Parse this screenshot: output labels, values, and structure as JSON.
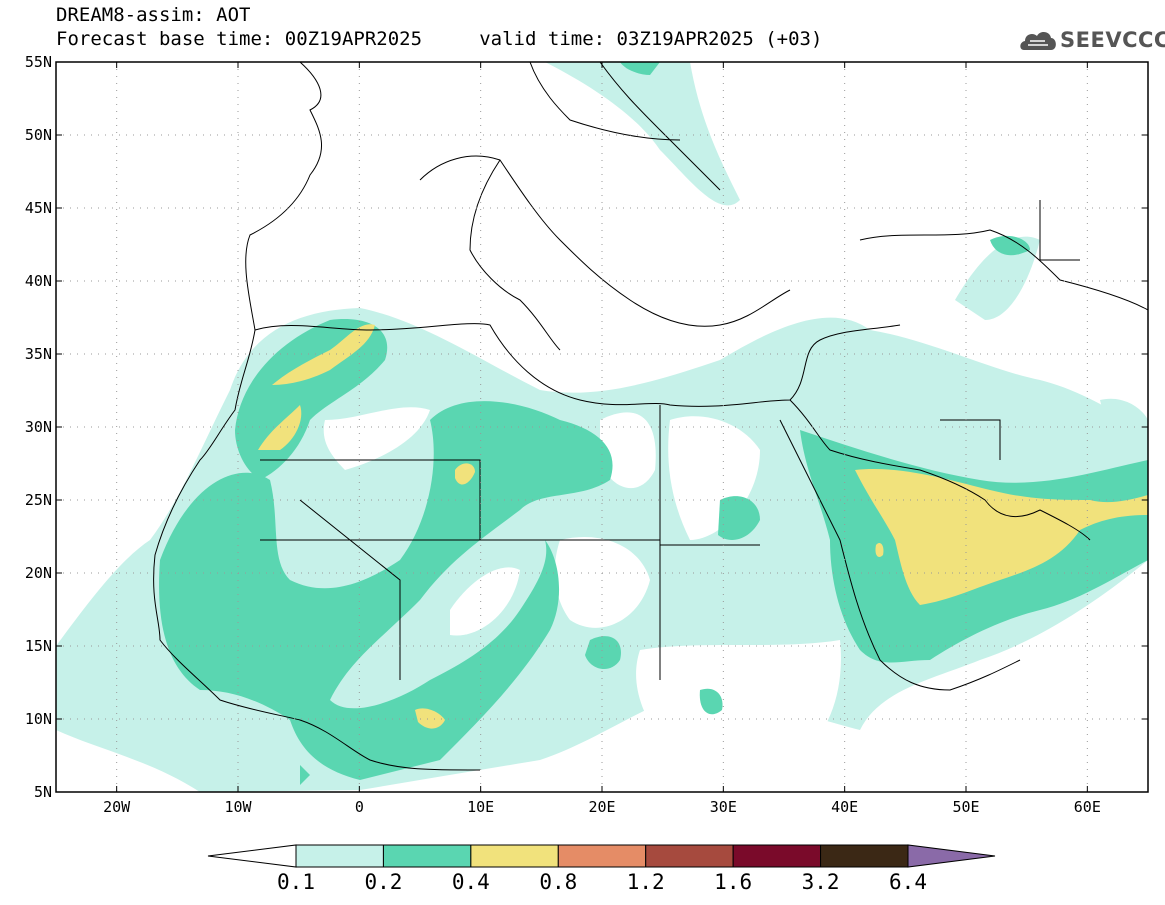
{
  "header": {
    "title": "DREAM8-assim: AOT",
    "subtitle": "Forecast base time: 00Z19APR2025     valid time: 03Z19APR2025 (+03)",
    "logo": "SEEVCCC",
    "logo_icon": "cloud-icon"
  },
  "map": {
    "lon_range": [
      -25,
      65
    ],
    "lat_range": [
      5,
      55
    ],
    "lat_ticks": [
      {
        "value": 55,
        "label": "55N"
      },
      {
        "value": 50,
        "label": "50N"
      },
      {
        "value": 45,
        "label": "45N"
      },
      {
        "value": 40,
        "label": "40N"
      },
      {
        "value": 35,
        "label": "35N"
      },
      {
        "value": 30,
        "label": "30N"
      },
      {
        "value": 25,
        "label": "25N"
      },
      {
        "value": 20,
        "label": "20N"
      },
      {
        "value": 15,
        "label": "15N"
      },
      {
        "value": 10,
        "label": "10N"
      },
      {
        "value": 5,
        "label": "5N"
      }
    ],
    "lon_ticks": [
      {
        "value": -20,
        "label": "20W"
      },
      {
        "value": -10,
        "label": "10W"
      },
      {
        "value": 0,
        "label": "0"
      },
      {
        "value": 10,
        "label": "10E"
      },
      {
        "value": 20,
        "label": "20E"
      },
      {
        "value": 30,
        "label": "30E"
      },
      {
        "value": 40,
        "label": "40E"
      },
      {
        "value": 50,
        "label": "50E"
      },
      {
        "value": 60,
        "label": "60E"
      }
    ],
    "grid": "dotted"
  },
  "colorbar": {
    "levels": [
      "0.1",
      "0.2",
      "0.4",
      "0.8",
      "1.2",
      "1.6",
      "3.2",
      "6.4"
    ],
    "colors": [
      "#c6f1e9",
      "#5ad6b1",
      "#f1e27c",
      "#e58c66",
      "#a64a3e",
      "#7a0a2a",
      "#3b2815",
      "#8a6aa8"
    ],
    "under_color": "#ffffff"
  }
}
